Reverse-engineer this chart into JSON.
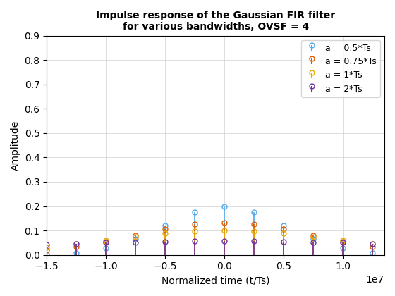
{
  "title": "Impulse response of the Gaussian FIR filter\nfor various bandwidths, OVSF = 4",
  "xlabel": "Normalized time (t/Ts)",
  "ylabel": "Amplitude",
  "xlim": [
    -15000000.0,
    13500000.0
  ],
  "ylim": [
    0,
    0.9
  ],
  "yticks": [
    0.0,
    0.1,
    0.2,
    0.3,
    0.4,
    0.5,
    0.6,
    0.7,
    0.8,
    0.9
  ],
  "OVSF": 4,
  "Ts": 10000000.0,
  "series": [
    {
      "label": "a = 0.5*Ts",
      "a_factor": 0.5,
      "color": "#4fa8e8",
      "num_taps": 25
    },
    {
      "label": "a = 0.75*Ts",
      "a_factor": 0.75,
      "color": "#e05a00",
      "num_taps": 25
    },
    {
      "label": "a = 1*Ts",
      "a_factor": 1.0,
      "color": "#e8a800",
      "num_taps": 25
    },
    {
      "label": "a = 2*Ts",
      "a_factor": 2.0,
      "color": "#7030a0",
      "num_taps": 25
    }
  ]
}
